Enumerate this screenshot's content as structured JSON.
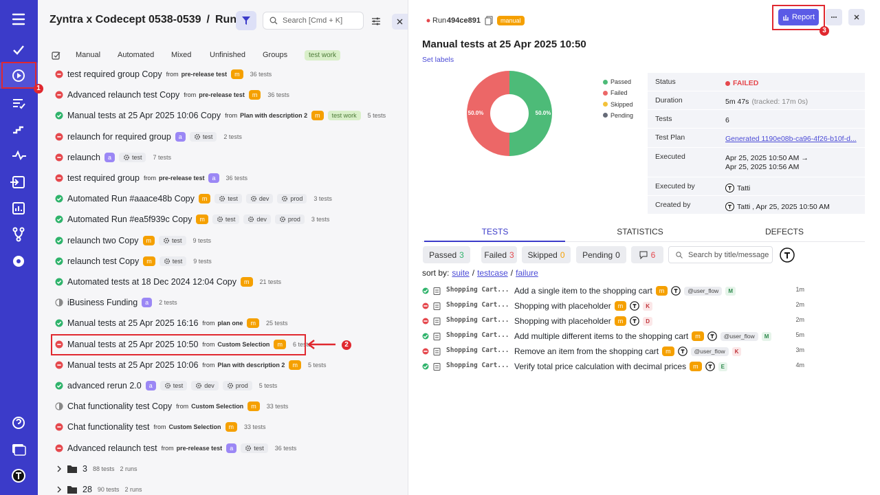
{
  "header": {
    "project": "Zyntra x Codecept 0538-0539",
    "separator": "/",
    "section": "Runs",
    "search_placeholder": "Search [Cmd + K]"
  },
  "list_tabs": [
    "Manual",
    "Automated",
    "Mixed",
    "Unfinished",
    "Groups"
  ],
  "list_tag": "test work",
  "labels": {
    "from": "from"
  },
  "runs": [
    {
      "status": "failed",
      "title": "test required group Copy",
      "source": "pre-release test",
      "badge": "m",
      "tests": "36 tests"
    },
    {
      "status": "failed",
      "title": "Advanced relaunch test Copy",
      "source": "pre-release test",
      "badge": "m",
      "tests": "36 tests"
    },
    {
      "status": "passed",
      "title": "Manual tests at 25 Apr 2025 10:06 Copy",
      "source": "Plan with description 2",
      "badge": "m",
      "tags": [
        "test work"
      ],
      "tests": "5 tests"
    },
    {
      "status": "failed",
      "title": "relaunch for required group",
      "badge": "a",
      "envs": [
        "test"
      ],
      "tests": "2 tests"
    },
    {
      "status": "failed",
      "title": "relaunch",
      "badge": "a",
      "envs": [
        "test"
      ],
      "tests": "7 tests"
    },
    {
      "status": "failed",
      "title": "test required group",
      "source": "pre-release test",
      "badge": "a",
      "tests": "36 tests"
    },
    {
      "status": "passed",
      "title": "Automated Run #aaace48b Copy",
      "badge": "m",
      "envs": [
        "test",
        "dev",
        "prod"
      ],
      "tests": "3 tests"
    },
    {
      "status": "passed",
      "title": "Automated Run #ea5f939c Copy",
      "badge": "m",
      "envs": [
        "test",
        "dev",
        "prod"
      ],
      "tests": "3 tests"
    },
    {
      "status": "passed",
      "title": "relaunch two Copy",
      "badge": "m",
      "envs": [
        "test"
      ],
      "tests": "9 tests"
    },
    {
      "status": "passed",
      "title": "relaunch test Copy",
      "badge": "m",
      "envs": [
        "test"
      ],
      "tests": "9 tests"
    },
    {
      "status": "passed",
      "title": "Automated tests at 18 Dec 2024 12:04 Copy",
      "badge": "m",
      "tests": "21 tests"
    },
    {
      "status": "partial",
      "title": "iBusiness Funding",
      "badge": "a",
      "tests": "2 tests"
    },
    {
      "status": "passed",
      "title": "Manual tests at 25 Apr 2025 16:16",
      "source": "plan one",
      "badge": "m",
      "tests": "25 tests"
    },
    {
      "status": "failed",
      "title": "Manual tests at 25 Apr 2025 10:50",
      "source": "Custom Selection",
      "badge": "m",
      "tests": "6 tests"
    },
    {
      "status": "failed",
      "title": "Manual tests at 25 Apr 2025 10:06",
      "source": "Plan with description 2",
      "badge": "m",
      "tests": "5 tests"
    },
    {
      "status": "passed",
      "title": "advanced rerun 2.0",
      "badge": "a",
      "envs": [
        "test",
        "dev",
        "prod"
      ],
      "tests": "5 tests"
    },
    {
      "status": "partial",
      "title": "Chat functionality test Copy",
      "source": "Custom Selection",
      "badge": "m",
      "tests": "33 tests"
    },
    {
      "status": "failed",
      "title": "Chat functionality test",
      "source": "Custom Selection",
      "badge": "m",
      "tests": "33 tests"
    },
    {
      "status": "failed",
      "title": "Advanced relaunch test",
      "source": "pre-release test",
      "badge": "a",
      "envs": [
        "test"
      ],
      "tests": "36 tests"
    }
  ],
  "folders": [
    {
      "name": "3",
      "tests": "88 tests",
      "runs": "2 runs"
    },
    {
      "name": "28",
      "tests": "90 tests",
      "runs": "2 runs"
    }
  ],
  "annotations": [
    "1",
    "2",
    "3"
  ],
  "detail": {
    "run_label": "Run",
    "run_id": "494ce891",
    "run_kind": "manual",
    "report_button": "Report",
    "title": "Manual tests at 25 Apr 2025 10:50",
    "set_labels": "Set labels",
    "info": [
      {
        "label": "Status",
        "value": "FAILED"
      },
      {
        "label": "Duration",
        "value": "5m 47s",
        "note": "(tracked: 17m 0s)"
      },
      {
        "label": "Tests",
        "value": "6"
      },
      {
        "label": "Test Plan",
        "value": "Generated 1190e08b-ca96-4f26-b10f-d..."
      },
      {
        "label": "Executed",
        "value": "Apr 25, 2025 10:50 AM →",
        "value2": "Apr 25, 2025 10:56 AM"
      },
      {
        "label": "Executed by",
        "value": "Tatti"
      },
      {
        "label": "Created by",
        "value": "Tatti , Apr 25, 2025 10:50 AM"
      }
    ],
    "tabs": [
      "TESTS",
      "STATISTICS",
      "DEFECTS"
    ],
    "filters": [
      {
        "label": "Passed",
        "count": 3
      },
      {
        "label": "Failed",
        "count": 3
      },
      {
        "label": "Skipped",
        "count": 0
      },
      {
        "label": "Pending",
        "count": 0
      }
    ],
    "comments": 6,
    "search_placeholder": "Search by title/message",
    "sort": {
      "label": "sort by:",
      "options": [
        "suite",
        "testcase",
        "failure"
      ],
      "separator": "/"
    },
    "tests": [
      {
        "status": "passed",
        "suite": "Shopping Cart...",
        "title": "Add a single item to the shopping cart",
        "badge": "m",
        "tag": "@user_flow",
        "letter": "M",
        "time": "1m"
      },
      {
        "status": "failed",
        "suite": "Shopping Cart...",
        "title": "Shopping with placeholder",
        "badge": "m",
        "letter": "K",
        "time": "2m"
      },
      {
        "status": "failed",
        "suite": "Shopping Cart...",
        "title": "Shopping with placeholder",
        "badge": "m",
        "letter": "D",
        "time": "2m"
      },
      {
        "status": "passed",
        "suite": "Shopping Cart...",
        "title": "Add multiple different items to the shopping cart",
        "badge": "m",
        "tag": "@user_flow",
        "letter": "M",
        "time": "5m"
      },
      {
        "status": "failed",
        "suite": "Shopping Cart...",
        "title": "Remove an item from the shopping cart",
        "badge": "m",
        "tag": "@user_flow",
        "letter": "K",
        "time": "3m"
      },
      {
        "status": "passed",
        "suite": "Shopping Cart...",
        "title": "Verify total price calculation with decimal prices",
        "badge": "m",
        "letter": "E",
        "time": "4m"
      }
    ]
  },
  "chart_data": {
    "type": "pie",
    "categories": [
      "Passed",
      "Failed",
      "Skipped",
      "Pending"
    ],
    "values": [
      50,
      50,
      0,
      0
    ],
    "value_labels": [
      "50.0%",
      "50.0%",
      null,
      null
    ],
    "colors": [
      "#4dbb78",
      "#ec6767",
      "#f3c23a",
      "#666b78"
    ]
  }
}
